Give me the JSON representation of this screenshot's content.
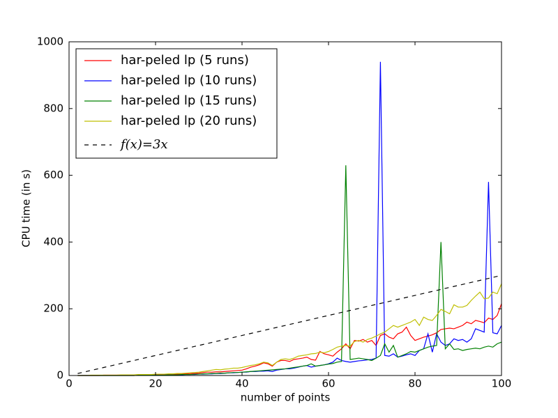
{
  "chart_data": {
    "type": "line",
    "xlabel": "number of points",
    "ylabel": "CPU time (in s)",
    "xlim": [
      0,
      100
    ],
    "ylim": [
      0,
      1000
    ],
    "xticks": [
      0,
      20,
      40,
      60,
      80,
      100
    ],
    "yticks": [
      0,
      200,
      400,
      600,
      800,
      1000
    ],
    "legend": "upper left",
    "x": [
      2,
      3,
      4,
      5,
      6,
      7,
      8,
      9,
      10,
      11,
      12,
      13,
      14,
      15,
      16,
      17,
      18,
      19,
      20,
      21,
      22,
      23,
      24,
      25,
      26,
      27,
      28,
      29,
      30,
      31,
      32,
      33,
      34,
      35,
      36,
      37,
      38,
      39,
      40,
      41,
      42,
      43,
      44,
      45,
      46,
      47,
      48,
      49,
      50,
      51,
      52,
      53,
      54,
      55,
      56,
      57,
      58,
      59,
      60,
      61,
      62,
      63,
      64,
      65,
      66,
      67,
      68,
      69,
      70,
      71,
      72,
      73,
      74,
      75,
      76,
      77,
      78,
      79,
      80,
      81,
      82,
      83,
      84,
      85,
      86,
      87,
      88,
      89,
      90,
      91,
      92,
      93,
      94,
      95,
      96,
      97,
      98,
      99,
      100
    ],
    "series": [
      {
        "name": "har-peled lp (5 runs)",
        "color": "#ff0000",
        "values": [
          0,
          0,
          0,
          0,
          0,
          0,
          1,
          1,
          1,
          1,
          1,
          1,
          1,
          2,
          2,
          2,
          2,
          3,
          3,
          3,
          3,
          4,
          4,
          4,
          5,
          5,
          6,
          6,
          7,
          9,
          10,
          10,
          11,
          11,
          12,
          13,
          14,
          15,
          16,
          20,
          25,
          28,
          32,
          38,
          35,
          28,
          40,
          45,
          45,
          42,
          48,
          50,
          52,
          55,
          48,
          46,
          72,
          65,
          62,
          58,
          70,
          80,
          95,
          80,
          105,
          103,
          108,
          100,
          105,
          90,
          120,
          125,
          115,
          110,
          125,
          130,
          145,
          120,
          105,
          110,
          115,
          118,
          122,
          128,
          138,
          140,
          142,
          140,
          145,
          150,
          160,
          155,
          165,
          162,
          158,
          172,
          168,
          180,
          215
        ]
      },
      {
        "name": "har-peled lp (10 runs)",
        "color": "#0000ff",
        "values": [
          0,
          0,
          0,
          0,
          0,
          0,
          0,
          0,
          0,
          0,
          0,
          0,
          0,
          0,
          1,
          1,
          1,
          1,
          1,
          1,
          1,
          2,
          2,
          2,
          2,
          3,
          3,
          3,
          4,
          4,
          5,
          5,
          6,
          6,
          7,
          8,
          8,
          9,
          10,
          10,
          12,
          12,
          13,
          13,
          14,
          12,
          16,
          18,
          20,
          20,
          22,
          25,
          28,
          30,
          25,
          28,
          30,
          32,
          35,
          40,
          52,
          45,
          42,
          40,
          42,
          44,
          45,
          47,
          48,
          52,
          940,
          60,
          58,
          65,
          55,
          58,
          62,
          65,
          60,
          75,
          80,
          125,
          70,
          125,
          100,
          90,
          95,
          110,
          105,
          108,
          100,
          110,
          140,
          135,
          130,
          580,
          128,
          125,
          150
        ]
      },
      {
        "name": "har-peled lp (15 runs)",
        "color": "#008000",
        "values": [
          0,
          0,
          0,
          0,
          0,
          0,
          0,
          0,
          0,
          0,
          0,
          0,
          0,
          0,
          1,
          1,
          1,
          1,
          1,
          1,
          1,
          2,
          2,
          2,
          3,
          3,
          3,
          4,
          4,
          5,
          5,
          6,
          6,
          7,
          7,
          8,
          9,
          9,
          10,
          11,
          12,
          13,
          14,
          15,
          16,
          17,
          18,
          19,
          20,
          22,
          24,
          26,
          28,
          30,
          35,
          28,
          30,
          32,
          34,
          36,
          40,
          42,
          630,
          48,
          50,
          52,
          50,
          48,
          45,
          52,
          60,
          95,
          70,
          90,
          55,
          60,
          65,
          72,
          70,
          75,
          80,
          85,
          88,
          90,
          400,
          80,
          95,
          78,
          80,
          75,
          78,
          80,
          82,
          80,
          85,
          88,
          85,
          95,
          100
        ]
      },
      {
        "name": "har-peled lp (20 runs)",
        "color": "#bfbf00",
        "values": [
          0,
          0,
          0,
          1,
          1,
          1,
          1,
          1,
          1,
          1,
          2,
          2,
          2,
          2,
          3,
          3,
          3,
          3,
          4,
          4,
          4,
          5,
          5,
          6,
          6,
          7,
          8,
          9,
          10,
          12,
          14,
          16,
          18,
          17,
          19,
          20,
          22,
          22,
          24,
          27,
          30,
          32,
          35,
          40,
          38,
          30,
          40,
          48,
          50,
          48,
          52,
          58,
          60,
          62,
          65,
          66,
          70,
          68,
          72,
          78,
          85,
          88,
          90,
          88,
          102,
          105,
          100,
          108,
          112,
          118,
          125,
          130,
          140,
          150,
          145,
          150,
          155,
          160,
          168,
          150,
          175,
          168,
          165,
          180,
          198,
          192,
          185,
          212,
          205,
          205,
          210,
          225,
          238,
          250,
          230,
          232,
          250,
          245,
          275
        ]
      },
      {
        "name": "f(x)=3x",
        "color": "#000000",
        "dashed": true,
        "x": [
          2,
          100
        ],
        "values": [
          6,
          300
        ]
      }
    ]
  }
}
